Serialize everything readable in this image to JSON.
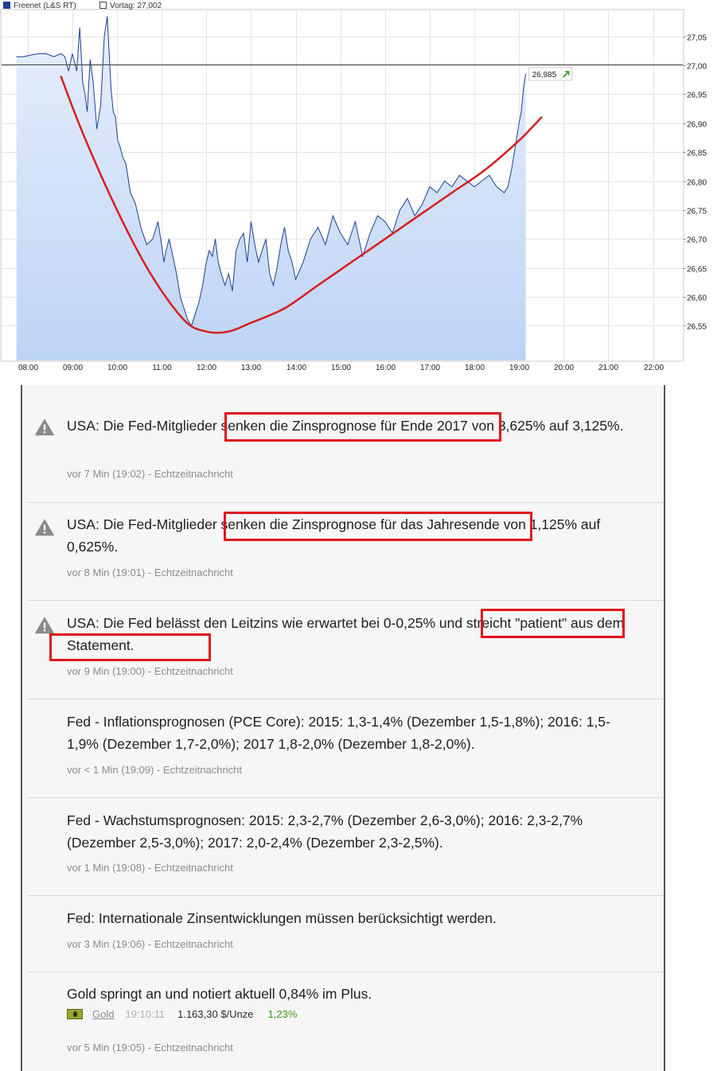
{
  "chart_data": {
    "type": "area",
    "series": [
      {
        "name": "Freenet (L&S RT)",
        "color": "#1f3f93",
        "fill": "#bed4f5",
        "x": [
          "07:45",
          "07:55",
          "08:05",
          "08:15",
          "08:25",
          "08:35",
          "08:45",
          "08:50",
          "08:55",
          "09:00",
          "09:03",
          "09:06",
          "09:08",
          "09:10",
          "09:14",
          "09:17",
          "09:20",
          "09:24",
          "09:28",
          "09:33",
          "09:38",
          "09:43",
          "09:47",
          "09:52",
          "09:55",
          "09:58",
          "10:01",
          "10:04",
          "10:08",
          "10:12",
          "10:18",
          "10:25",
          "10:32",
          "10:40",
          "10:48",
          "10:55",
          "11:00",
          "11:03",
          "11:06",
          "11:10",
          "11:15",
          "11:20",
          "11:25",
          "11:30",
          "11:35",
          "11:40",
          "11:45",
          "11:50",
          "11:55",
          "12:00",
          "12:04",
          "12:08",
          "12:12",
          "12:16",
          "12:20",
          "12:25",
          "12:30",
          "12:35",
          "12:40",
          "12:45",
          "12:50",
          "12:55",
          "13:00",
          "13:05",
          "13:10",
          "13:15",
          "13:20",
          "13:25",
          "13:30",
          "13:35",
          "13:40",
          "13:45",
          "13:50",
          "13:55",
          "14:00",
          "14:10",
          "14:20",
          "14:30",
          "14:40",
          "14:50",
          "15:00",
          "15:10",
          "15:20",
          "15:30",
          "15:40",
          "15:50",
          "16:00",
          "16:10",
          "16:20",
          "16:30",
          "16:40",
          "16:50",
          "17:00",
          "17:10",
          "17:20",
          "17:30",
          "17:40",
          "17:50",
          "18:00",
          "18:10",
          "18:20",
          "18:30",
          "18:40",
          "18:45",
          "18:50",
          "18:55",
          "19:00",
          "19:03",
          "19:06",
          "19:09"
        ],
        "y": [
          27.015,
          27.015,
          27.018,
          27.02,
          27.02,
          27.015,
          27.02,
          27.015,
          26.99,
          27.02,
          27.005,
          26.99,
          27.03,
          27.065,
          26.97,
          26.95,
          26.92,
          27.01,
          26.97,
          26.89,
          26.93,
          27.05,
          27.085,
          26.96,
          26.92,
          26.91,
          26.87,
          26.86,
          26.84,
          26.83,
          26.78,
          26.76,
          26.72,
          26.69,
          26.7,
          26.73,
          26.69,
          26.66,
          26.68,
          26.7,
          26.67,
          26.64,
          26.6,
          26.58,
          26.56,
          26.55,
          26.57,
          26.59,
          26.62,
          26.66,
          26.68,
          26.67,
          26.7,
          26.66,
          26.64,
          26.62,
          26.64,
          26.61,
          26.68,
          26.7,
          26.71,
          26.66,
          26.73,
          26.69,
          26.66,
          26.68,
          26.7,
          26.64,
          26.62,
          26.65,
          26.69,
          26.72,
          26.68,
          26.66,
          26.63,
          26.66,
          26.7,
          26.72,
          26.69,
          26.74,
          26.71,
          26.69,
          26.73,
          26.67,
          26.71,
          26.74,
          26.73,
          26.71,
          26.75,
          26.77,
          26.74,
          26.76,
          26.79,
          26.78,
          26.8,
          26.79,
          26.81,
          26.8,
          26.79,
          26.8,
          26.81,
          26.79,
          26.78,
          26.79,
          26.82,
          26.86,
          26.9,
          26.92,
          26.96,
          26.985
        ]
      },
      {
        "name": "Vortag: 27,002",
        "color": "#444444",
        "y_const": 27.002
      }
    ],
    "trendline": {
      "color": "#d81e1e",
      "x": [
        "08:45",
        "09:15",
        "10:00",
        "10:45",
        "11:30",
        "12:00",
        "12:30",
        "13:00",
        "13:45",
        "14:30",
        "15:15",
        "16:00",
        "16:45",
        "17:30",
        "18:15",
        "19:00",
        "19:30"
      ],
      "y": [
        26.98,
        26.88,
        26.75,
        26.64,
        26.56,
        26.54,
        26.54,
        26.555,
        26.58,
        26.62,
        26.66,
        26.7,
        26.74,
        26.78,
        26.82,
        26.87,
        26.91
      ]
    },
    "last_value_label": "26,985",
    "xlim": [
      "07:25",
      "22:40"
    ],
    "ylim": [
      26.49,
      27.095
    ],
    "xticks": [
      "08:00",
      "09:00",
      "10:00",
      "11:00",
      "12:00",
      "13:00",
      "14:00",
      "15:00",
      "16:00",
      "17:00",
      "18:00",
      "19:00",
      "20:00",
      "21:00",
      "22:00"
    ],
    "yticks": [
      26.55,
      26.6,
      26.65,
      26.7,
      26.75,
      26.8,
      26.85,
      26.9,
      26.95,
      27.0,
      27.05
    ],
    "ytick_labels": [
      "26,55",
      "26,60",
      "26,65",
      "26,70",
      "26,75",
      "26,80",
      "26,85",
      "26,90",
      "26,95",
      "27,00",
      "27,05"
    ],
    "grid": true,
    "legend_position": "top-left"
  },
  "news": [
    {
      "text": "USA: Die Fed-Mitglieder senken die Zinsprognose für Ende 2017 von 3,625% auf 3,125%.",
      "meta": "vor 7 Min (19:02) - Echtzeitnachricht",
      "warning": true
    },
    {
      "text": "USA: Die Fed-Mitglieder senken die Zinsprognose für das Jahresende von 1,125% auf 0,625%.",
      "meta": "vor 8 Min (19:01) - Echtzeitnachricht",
      "warning": true
    },
    {
      "text": "USA: Die Fed belässt den Leitzins wie erwartet bei 0-0,25% und streicht \"patient\" aus dem Statement.",
      "meta": "vor 9 Min (19:00) - Echtzeitnachricht",
      "warning": true
    },
    {
      "text": "Fed - Inflationsprognosen (PCE Core): 2015: 1,3-1,4% (Dezember 1,5-1,8%); 2016: 1,5-1,9% (Dezember 1,7-2,0%); 2017 1,8-2,0% (Dezember 1,8-2,0%).",
      "meta": "vor < 1 Min (19:09) - Echtzeitnachricht",
      "warning": false
    },
    {
      "text": "Fed - Wachstumsprognosen: 2015: 2,3-2,7% (Dezember 2,6-3,0%); 2016: 2,3-2,7% (Dezember 2,5-3,0%); 2017: 2,0-2,4% (Dezember 2,3-2,5%).",
      "meta": "vor 1 Min (19:08) - Echtzeitnachricht",
      "warning": false
    },
    {
      "text": "Fed: Internationale Zinsentwicklungen müssen berücksichtigt werden.",
      "meta": "vor 3 Min (19:06) - Echtzeitnachricht",
      "warning": false
    },
    {
      "text": "Gold springt an und notiert aktuell 0,84% im Plus.",
      "meta": "vor 5 Min (19:05) - Echtzeitnachricht",
      "warning": false,
      "quote": {
        "name": "Gold",
        "time": "19:10:11",
        "price": "1.163,30 $/Unze",
        "change": "1,23%"
      }
    }
  ]
}
